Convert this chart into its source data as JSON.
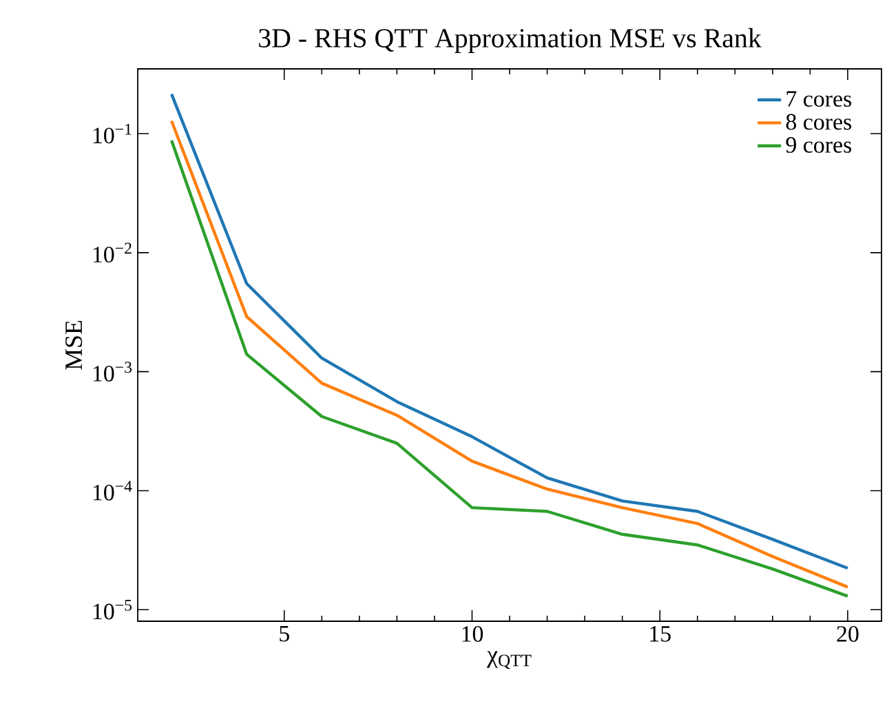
{
  "chart_data": {
    "type": "line",
    "title": "3D - RHS QTT Approximation MSE vs Rank",
    "xlabel": "χ$_{QTT}$",
    "ylabel": "MSE",
    "x": [
      2,
      4,
      6,
      8,
      10,
      12,
      14,
      16,
      18,
      20
    ],
    "series": [
      {
        "name": "7 cores",
        "color": "#1f77b4",
        "values": [
          0.215,
          0.0055,
          0.0013,
          0.00056,
          0.000284,
          0.000128,
          8.2e-05,
          6.7e-05,
          3.9e-05,
          2.23e-05
        ]
      },
      {
        "name": "8 cores",
        "color": "#ff7f0e",
        "values": [
          0.128,
          0.0029,
          0.0008,
          0.00043,
          0.000177,
          0.000103,
          7.2e-05,
          5.3e-05,
          2.8e-05,
          1.55e-05
        ]
      },
      {
        "name": "9 cores",
        "color": "#2ca02c",
        "values": [
          0.0875,
          0.0014,
          0.00042,
          0.00025,
          7.2e-05,
          6.7e-05,
          4.3e-05,
          3.5e-05,
          2.2e-05,
          1.3e-05
        ]
      }
    ],
    "xlim": [
      1.1,
      20.9
    ],
    "xticks": [
      5,
      10,
      15,
      20
    ],
    "ylim": [
      8e-06,
      0.35
    ],
    "yticks": [
      {
        "value": 0.1,
        "label": "10$^{−1}$"
      },
      {
        "value": 0.01,
        "label": "10$^{−2}$"
      },
      {
        "value": 0.001,
        "label": "10$^{−3}$"
      },
      {
        "value": 0.0001,
        "label": "10$^{−4}$"
      },
      {
        "value": 1e-05,
        "label": "10$^{−5}$"
      }
    ],
    "log": "y",
    "legend": "top right",
    "grid": false
  }
}
